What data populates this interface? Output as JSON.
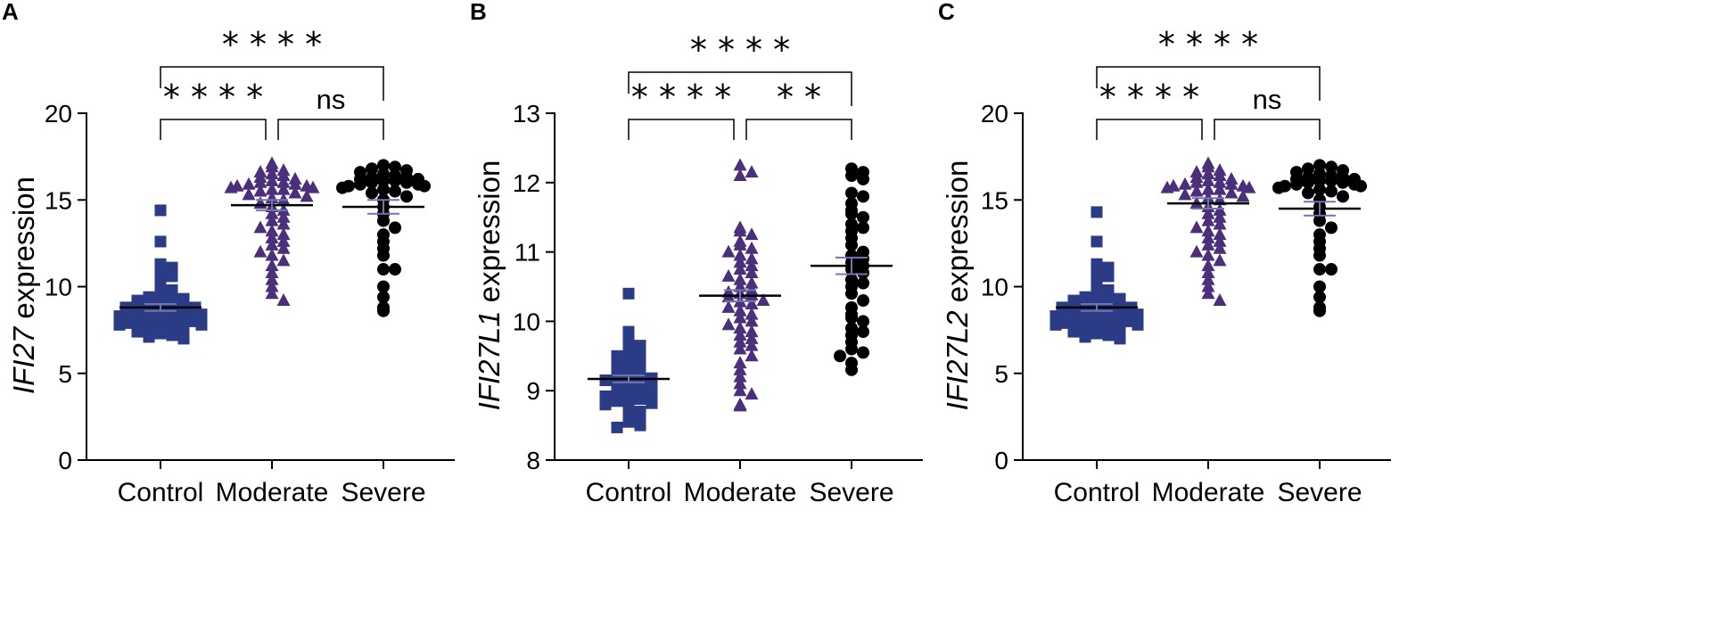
{
  "colors": {
    "control": "#2b3b86",
    "moderate": "#4c2f7a",
    "severe": "#000000",
    "sem": "#6f76b0"
  },
  "chart_data": [
    {
      "panel": "A",
      "type": "scatter",
      "ylabel_gene": "IFI27",
      "ylabel_suffix": " expression",
      "ylim": [
        0,
        20
      ],
      "yticks": [
        "0",
        "5",
        "10",
        "15",
        "20"
      ],
      "tick_values": [
        0,
        5,
        10,
        15,
        20
      ],
      "categories": [
        "Control",
        "Moderate",
        "Severe"
      ],
      "series": [
        {
          "name": "Control",
          "marker": "square",
          "mean": 8.8,
          "sem": 0.2,
          "values": [
            14.4,
            12.6,
            11.3,
            11.1,
            10.8,
            10.6,
            10.2,
            10.0,
            9.8,
            9.6,
            9.5,
            9.4,
            9.3,
            9.2,
            9.1,
            9.0,
            9.0,
            8.9,
            8.9,
            8.8,
            8.8,
            8.7,
            8.7,
            8.6,
            8.6,
            8.5,
            8.5,
            8.4,
            8.4,
            8.3,
            8.3,
            8.2,
            8.2,
            8.1,
            8.1,
            8.0,
            8.0,
            7.9,
            7.9,
            7.8,
            7.8,
            7.7,
            7.7,
            7.6,
            7.5,
            7.4,
            7.3,
            7.2,
            7.1,
            7.0
          ]
        },
        {
          "name": "Moderate",
          "marker": "triangle",
          "mean": 14.7,
          "sem": 0.3,
          "values": [
            17.1,
            16.9,
            16.7,
            16.6,
            16.5,
            16.4,
            16.3,
            16.2,
            16.1,
            16.0,
            16.0,
            15.9,
            15.9,
            15.8,
            15.8,
            15.7,
            15.7,
            15.6,
            15.6,
            15.5,
            15.4,
            15.3,
            15.2,
            15.1,
            15.0,
            14.8,
            14.6,
            14.4,
            14.2,
            14.0,
            13.8,
            13.6,
            13.4,
            13.2,
            13.0,
            12.8,
            12.6,
            12.4,
            12.2,
            12.0,
            11.8,
            11.5,
            11.2,
            10.8,
            10.4,
            10.0,
            9.6,
            9.2
          ]
        },
        {
          "name": "Severe",
          "marker": "circle",
          "mean": 14.6,
          "sem": 0.4,
          "values": [
            17.0,
            16.9,
            16.8,
            16.7,
            16.6,
            16.5,
            16.4,
            16.3,
            16.3,
            16.2,
            16.2,
            16.1,
            16.1,
            16.0,
            16.0,
            15.9,
            15.9,
            15.8,
            15.8,
            15.7,
            15.6,
            15.5,
            15.4,
            15.2,
            15.0,
            14.6,
            14.2,
            13.8,
            13.4,
            13.0,
            12.6,
            12.2,
            11.8,
            11.0,
            11.0,
            10.0,
            9.4,
            8.8,
            8.6
          ]
        }
      ],
      "comparisons": [
        {
          "from": 0,
          "to": 2,
          "label": "* * * *",
          "level": 2
        },
        {
          "from": 0,
          "to": 1,
          "label": "* * * *",
          "level": 1
        },
        {
          "from": 1,
          "to": 2,
          "label": "ns",
          "level": 1
        }
      ]
    },
    {
      "panel": "B",
      "type": "scatter",
      "ylabel_gene": "IFI27L1",
      "ylabel_suffix": " expression",
      "ylim": [
        8,
        13
      ],
      "yticks": [
        "8",
        "9",
        "10",
        "11",
        "12",
        "13"
      ],
      "tick_values": [
        8,
        9,
        10,
        11,
        12,
        13
      ],
      "categories": [
        "Control",
        "Moderate",
        "Severe"
      ],
      "series": [
        {
          "name": "Control",
          "marker": "square",
          "mean": 9.17,
          "sem": 0.05,
          "values": [
            10.4,
            9.85,
            9.8,
            9.7,
            9.65,
            9.6,
            9.55,
            9.5,
            9.45,
            9.4,
            9.38,
            9.35,
            9.3,
            9.28,
            9.25,
            9.22,
            9.2,
            9.18,
            9.15,
            9.12,
            9.1,
            9.08,
            9.05,
            9.02,
            9.0,
            8.98,
            8.95,
            8.92,
            8.9,
            8.88,
            8.85,
            8.82,
            8.8,
            8.75,
            8.7,
            8.65,
            8.6,
            8.55,
            8.5,
            8.47
          ]
        },
        {
          "name": "Moderate",
          "marker": "triangle",
          "mean": 10.37,
          "sem": 0.08,
          "values": [
            12.25,
            12.15,
            12.1,
            11.35,
            11.3,
            11.25,
            11.15,
            11.1,
            11.05,
            11.0,
            10.95,
            10.9,
            10.85,
            10.8,
            10.75,
            10.7,
            10.65,
            10.6,
            10.55,
            10.5,
            10.45,
            10.42,
            10.4,
            10.38,
            10.35,
            10.3,
            10.28,
            10.25,
            10.2,
            10.15,
            10.1,
            10.05,
            10.0,
            9.95,
            9.9,
            9.85,
            9.8,
            9.75,
            9.7,
            9.65,
            9.6,
            9.5,
            9.4,
            9.3,
            9.2,
            9.1,
            9.0,
            8.95,
            8.8,
            8.78
          ]
        },
        {
          "name": "Severe",
          "marker": "circle",
          "mean": 10.8,
          "sem": 0.12,
          "values": [
            12.2,
            12.15,
            12.1,
            12.05,
            11.85,
            11.8,
            11.7,
            11.6,
            11.55,
            11.5,
            11.4,
            11.35,
            11.3,
            11.2,
            11.1,
            11.0,
            10.95,
            10.9,
            10.85,
            10.8,
            10.75,
            10.7,
            10.6,
            10.55,
            10.5,
            10.4,
            10.3,
            10.2,
            10.1,
            10.05,
            10.0,
            9.9,
            9.85,
            9.8,
            9.7,
            9.6,
            9.55,
            9.5,
            9.4,
            9.3
          ]
        }
      ],
      "comparisons": [
        {
          "from": 0,
          "to": 2,
          "label": "* * * *",
          "level": 2
        },
        {
          "from": 0,
          "to": 1,
          "label": "* * * *",
          "level": 1
        },
        {
          "from": 1,
          "to": 2,
          "label": "* *",
          "level": 1
        }
      ]
    },
    {
      "panel": "C",
      "type": "scatter",
      "ylabel_gene": "IFI27L2",
      "ylabel_suffix": " expression",
      "ylim": [
        0,
        20
      ],
      "yticks": [
        "0",
        "5",
        "10",
        "15",
        "20"
      ],
      "tick_values": [
        0,
        5,
        10,
        15,
        20
      ],
      "categories": [
        "Control",
        "Moderate",
        "Severe"
      ],
      "series": [
        {
          "name": "Control",
          "marker": "square",
          "mean": 8.8,
          "sem": 0.2,
          "values": [
            14.3,
            12.6,
            11.3,
            11.1,
            10.8,
            10.6,
            10.2,
            10.0,
            9.8,
            9.6,
            9.5,
            9.4,
            9.3,
            9.2,
            9.1,
            9.0,
            9.0,
            8.9,
            8.9,
            8.8,
            8.8,
            8.7,
            8.7,
            8.6,
            8.6,
            8.5,
            8.5,
            8.4,
            8.4,
            8.3,
            8.3,
            8.2,
            8.2,
            8.1,
            8.1,
            8.0,
            8.0,
            7.9,
            7.9,
            7.8,
            7.8,
            7.7,
            7.7,
            7.6,
            7.5,
            7.4,
            7.3,
            7.2,
            7.1,
            7.0
          ]
        },
        {
          "name": "Moderate",
          "marker": "triangle",
          "mean": 14.8,
          "sem": 0.3,
          "values": [
            17.1,
            16.9,
            16.7,
            16.6,
            16.5,
            16.4,
            16.3,
            16.2,
            16.1,
            16.0,
            16.0,
            15.9,
            15.9,
            15.8,
            15.8,
            15.7,
            15.7,
            15.6,
            15.6,
            15.5,
            15.4,
            15.3,
            15.2,
            15.1,
            15.0,
            14.8,
            14.6,
            14.4,
            14.2,
            14.0,
            13.8,
            13.6,
            13.4,
            13.2,
            13.0,
            12.8,
            12.6,
            12.4,
            12.2,
            12.0,
            11.8,
            11.5,
            11.2,
            10.8,
            10.4,
            10.0,
            9.6,
            9.2
          ]
        },
        {
          "name": "Severe",
          "marker": "circle",
          "mean": 14.5,
          "sem": 0.4,
          "values": [
            17.0,
            16.9,
            16.8,
            16.7,
            16.6,
            16.5,
            16.4,
            16.3,
            16.3,
            16.2,
            16.2,
            16.1,
            16.1,
            16.0,
            16.0,
            15.9,
            15.9,
            15.8,
            15.8,
            15.7,
            15.6,
            15.5,
            15.4,
            15.2,
            15.0,
            14.6,
            14.2,
            13.8,
            13.4,
            13.0,
            12.6,
            12.2,
            11.8,
            11.0,
            11.0,
            10.0,
            9.4,
            8.8,
            8.6
          ]
        }
      ],
      "comparisons": [
        {
          "from": 0,
          "to": 2,
          "label": "* * * *",
          "level": 2
        },
        {
          "from": 0,
          "to": 1,
          "label": "* * * *",
          "level": 1
        },
        {
          "from": 1,
          "to": 2,
          "label": "ns",
          "level": 1
        }
      ]
    }
  ]
}
